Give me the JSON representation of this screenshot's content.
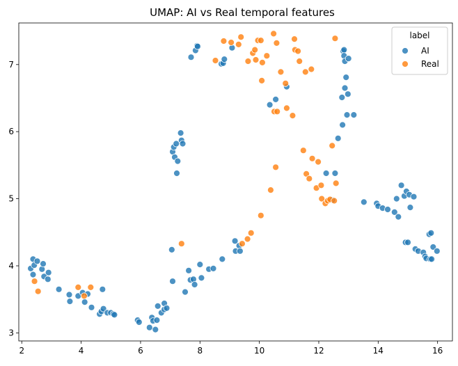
{
  "chart_data": {
    "type": "scatter",
    "title": "UMAP: AI vs Real temporal features",
    "xlabel": "",
    "ylabel": "",
    "xlim": [
      1.9,
      16.5
    ],
    "ylim": [
      2.88,
      7.62
    ],
    "xticks": [
      2,
      4,
      6,
      8,
      10,
      12,
      14,
      16
    ],
    "yticks": [
      3,
      4,
      5,
      6,
      7
    ],
    "grid": false,
    "legend": {
      "title": "label",
      "placement": "top-right",
      "entries": [
        "AI",
        "Real"
      ]
    },
    "colors": {
      "AI": "#1f77b4",
      "Real": "#ff7f0e"
    },
    "series": [
      {
        "name": "AI",
        "points": [
          [
            2.3,
            3.96
          ],
          [
            2.38,
            4.1
          ],
          [
            2.42,
            4.01
          ],
          [
            2.52,
            4.07
          ],
          [
            2.38,
            3.87
          ],
          [
            2.68,
            3.95
          ],
          [
            2.72,
            4.03
          ],
          [
            2.75,
            3.84
          ],
          [
            2.9,
            3.9
          ],
          [
            2.88,
            3.8
          ],
          [
            3.25,
            3.65
          ],
          [
            3.6,
            3.57
          ],
          [
            3.62,
            3.47
          ],
          [
            3.9,
            3.55
          ],
          [
            4.05,
            3.6
          ],
          [
            4.12,
            3.46
          ],
          [
            4.22,
            3.58
          ],
          [
            4.35,
            3.38
          ],
          [
            4.62,
            3.28
          ],
          [
            4.68,
            3.32
          ],
          [
            4.72,
            3.65
          ],
          [
            4.75,
            3.36
          ],
          [
            4.88,
            3.3
          ],
          [
            5.0,
            3.3
          ],
          [
            5.08,
            3.28
          ],
          [
            5.12,
            3.27
          ],
          [
            5.9,
            3.19
          ],
          [
            5.95,
            3.16
          ],
          [
            6.3,
            3.08
          ],
          [
            6.38,
            3.23
          ],
          [
            6.42,
            3.18
          ],
          [
            6.5,
            3.05
          ],
          [
            6.55,
            3.19
          ],
          [
            6.58,
            3.4
          ],
          [
            6.7,
            3.3
          ],
          [
            6.8,
            3.35
          ],
          [
            6.8,
            3.44
          ],
          [
            6.88,
            3.37
          ],
          [
            7.05,
            4.24
          ],
          [
            7.08,
            3.77
          ],
          [
            7.5,
            3.61
          ],
          [
            7.62,
            3.93
          ],
          [
            7.68,
            3.79
          ],
          [
            7.78,
            3.8
          ],
          [
            7.82,
            3.72
          ],
          [
            8.0,
            4.02
          ],
          [
            8.05,
            3.82
          ],
          [
            8.3,
            3.95
          ],
          [
            8.45,
            3.96
          ],
          [
            8.75,
            4.1
          ],
          [
            9.18,
            4.37
          ],
          [
            9.2,
            4.22
          ],
          [
            9.32,
            4.3
          ],
          [
            9.35,
            4.22
          ],
          [
            7.08,
            5.7
          ],
          [
            7.12,
            5.77
          ],
          [
            7.15,
            5.62
          ],
          [
            7.2,
            5.82
          ],
          [
            7.22,
            5.38
          ],
          [
            7.25,
            5.56
          ],
          [
            7.35,
            5.98
          ],
          [
            7.38,
            5.87
          ],
          [
            7.42,
            5.82
          ],
          [
            7.7,
            7.11
          ],
          [
            7.85,
            7.21
          ],
          [
            7.9,
            7.28
          ],
          [
            7.92,
            7.27
          ],
          [
            8.72,
            7.01
          ],
          [
            8.78,
            7.02
          ],
          [
            8.82,
            7.08
          ],
          [
            9.08,
            7.25
          ],
          [
            10.35,
            6.4
          ],
          [
            10.55,
            6.48
          ],
          [
            10.92,
            6.67
          ],
          [
            12.25,
            5.38
          ],
          [
            12.45,
            4.98
          ],
          [
            12.55,
            5.38
          ],
          [
            12.65,
            5.9
          ],
          [
            12.78,
            6.51
          ],
          [
            12.8,
            6.1
          ],
          [
            12.82,
            7.2
          ],
          [
            12.85,
            7.22
          ],
          [
            12.85,
            7.13
          ],
          [
            12.88,
            7.05
          ],
          [
            12.88,
            6.65
          ],
          [
            12.92,
            6.81
          ],
          [
            12.95,
            6.25
          ],
          [
            12.98,
            6.56
          ],
          [
            13.0,
            7.09
          ],
          [
            13.18,
            6.25
          ],
          [
            13.52,
            4.95
          ],
          [
            13.95,
            4.93
          ],
          [
            14.0,
            4.89
          ],
          [
            14.15,
            4.86
          ],
          [
            14.32,
            4.84
          ],
          [
            14.55,
            4.8
          ],
          [
            14.62,
            5.0
          ],
          [
            14.68,
            4.73
          ],
          [
            14.78,
            5.2
          ],
          [
            14.88,
            5.04
          ],
          [
            14.92,
            4.35
          ],
          [
            14.95,
            5.11
          ],
          [
            15.0,
            4.35
          ],
          [
            15.05,
            5.06
          ],
          [
            15.08,
            4.87
          ],
          [
            15.2,
            5.03
          ],
          [
            15.25,
            4.25
          ],
          [
            15.35,
            4.22
          ],
          [
            15.52,
            4.2
          ],
          [
            15.58,
            4.14
          ],
          [
            15.62,
            4.11
          ],
          [
            15.72,
            4.47
          ],
          [
            15.75,
            4.1
          ],
          [
            15.78,
            4.49
          ],
          [
            15.8,
            4.1
          ],
          [
            15.85,
            4.28
          ],
          [
            15.98,
            4.22
          ]
        ]
      },
      {
        "name": "Real",
        "points": [
          [
            2.43,
            3.77
          ],
          [
            2.55,
            3.62
          ],
          [
            3.9,
            3.68
          ],
          [
            4.1,
            3.55
          ],
          [
            4.32,
            3.68
          ],
          [
            7.38,
            4.33
          ],
          [
            8.52,
            7.06
          ],
          [
            8.8,
            7.35
          ],
          [
            9.05,
            7.33
          ],
          [
            9.3,
            7.3
          ],
          [
            9.38,
            7.41
          ],
          [
            9.62,
            7.05
          ],
          [
            9.78,
            7.17
          ],
          [
            9.85,
            7.22
          ],
          [
            9.88,
            7.07
          ],
          [
            9.95,
            7.36
          ],
          [
            10.05,
            7.36
          ],
          [
            10.08,
            6.76
          ],
          [
            10.1,
            7.03
          ],
          [
            10.25,
            7.13
          ],
          [
            10.48,
            7.46
          ],
          [
            10.5,
            6.3
          ],
          [
            10.58,
            7.32
          ],
          [
            10.6,
            6.3
          ],
          [
            10.72,
            6.89
          ],
          [
            10.88,
            6.72
          ],
          [
            10.92,
            6.35
          ],
          [
            11.12,
            6.24
          ],
          [
            11.18,
            7.38
          ],
          [
            11.2,
            7.22
          ],
          [
            11.3,
            7.2
          ],
          [
            11.35,
            7.05
          ],
          [
            11.55,
            6.89
          ],
          [
            11.75,
            6.93
          ],
          [
            9.42,
            4.33
          ],
          [
            9.6,
            4.4
          ],
          [
            9.72,
            4.49
          ],
          [
            10.05,
            4.75
          ],
          [
            10.38,
            5.13
          ],
          [
            10.55,
            5.47
          ],
          [
            11.48,
            5.72
          ],
          [
            11.58,
            5.37
          ],
          [
            11.68,
            5.3
          ],
          [
            11.78,
            5.6
          ],
          [
            11.92,
            5.16
          ],
          [
            11.98,
            5.55
          ],
          [
            12.08,
            5.2
          ],
          [
            12.1,
            5.0
          ],
          [
            12.22,
            4.93
          ],
          [
            12.3,
            4.97
          ],
          [
            12.38,
            4.99
          ],
          [
            12.45,
            5.79
          ],
          [
            12.52,
            4.97
          ],
          [
            12.55,
            7.39
          ],
          [
            12.58,
            5.23
          ]
        ]
      }
    ]
  }
}
